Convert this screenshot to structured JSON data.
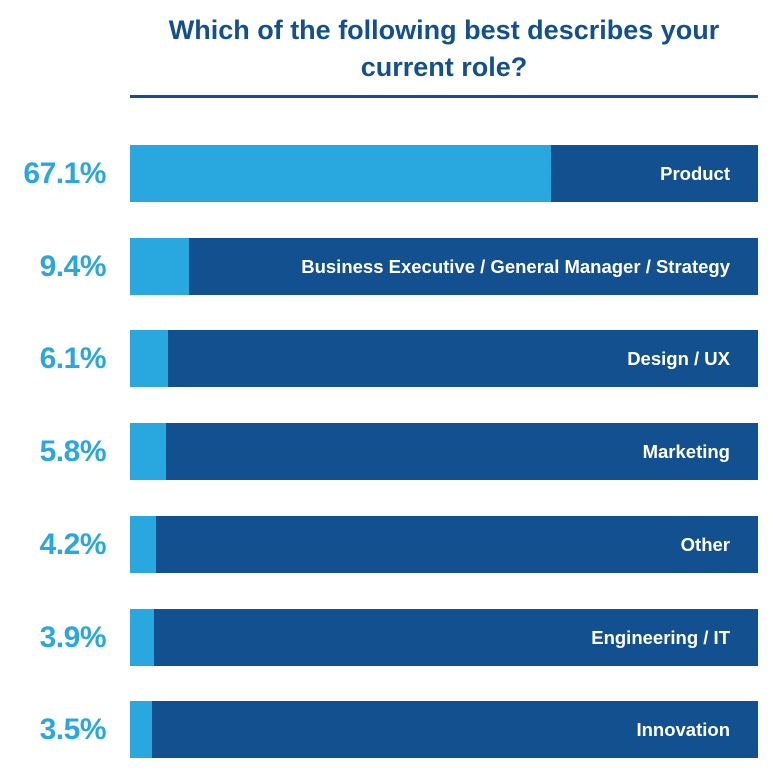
{
  "colors": {
    "title": "#12508f",
    "track": "#12508f",
    "fill": "#29a8e0",
    "percent_label": "#29a8e0",
    "category_label": "#ffffff"
  },
  "chart_data": {
    "type": "bar",
    "orientation": "horizontal",
    "title": "Which of the following best describes your current role?",
    "categories": [
      "Product",
      "Business Executive / General Manager / Strategy",
      "Design / UX",
      "Marketing",
      "Other",
      "Engineering / IT",
      "Innovation"
    ],
    "values": [
      67.1,
      9.4,
      6.1,
      5.8,
      4.2,
      3.9,
      3.5
    ],
    "value_labels": [
      "67.1%",
      "9.4%",
      "6.1%",
      "5.8%",
      "4.2%",
      "3.9%",
      "3.5%"
    ],
    "xlim": [
      0,
      100
    ],
    "unit": "%",
    "grid": false,
    "legend": "none"
  }
}
